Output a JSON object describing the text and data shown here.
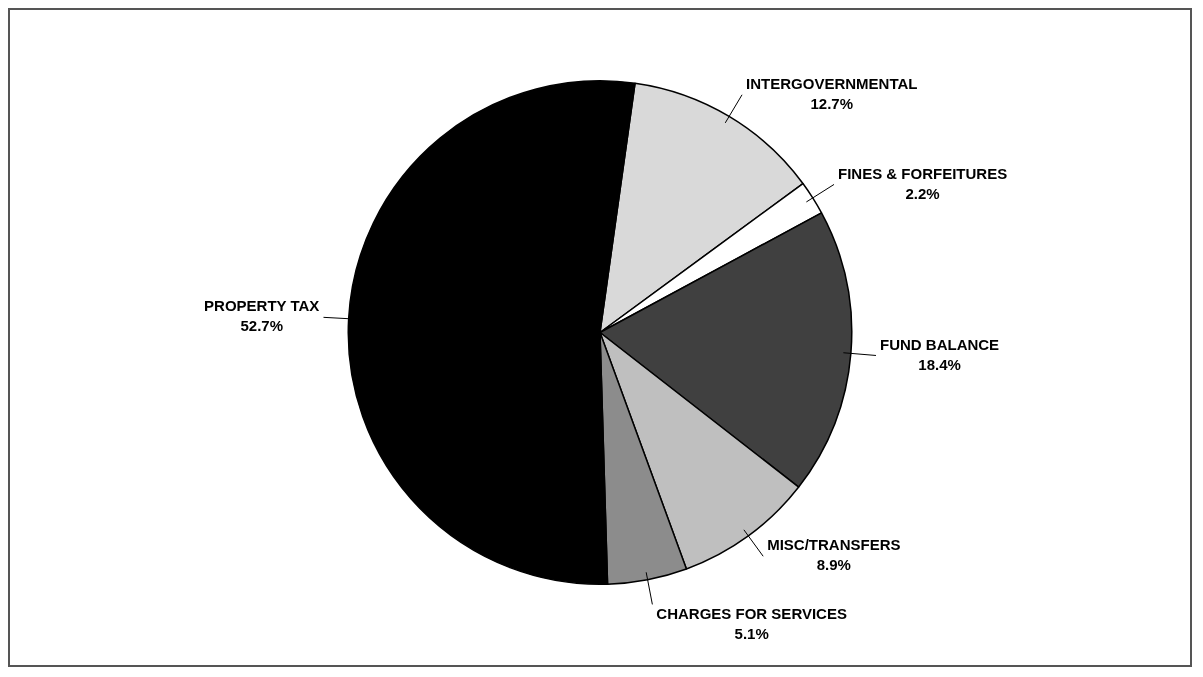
{
  "chart_data": {
    "type": "pie",
    "categories": [
      "INTERGOVERNMENTAL",
      "FINES & FORFEITURES",
      "FUND BALANCE",
      "MISC/TRANSFERS",
      "CHARGES FOR SERVICES",
      "PROPERTY TAX"
    ],
    "values": [
      12.7,
      2.2,
      18.4,
      8.9,
      5.1,
      52.7
    ],
    "value_labels": [
      "12.7%",
      "2.2%",
      "18.4%",
      "8.9%",
      "5.1%",
      "52.7%"
    ],
    "colors": [
      "#d9d9d9",
      "#ffffff",
      "#404040",
      "#bfbfbf",
      "#8c8c8c",
      "#000000"
    ],
    "legend": false
  }
}
